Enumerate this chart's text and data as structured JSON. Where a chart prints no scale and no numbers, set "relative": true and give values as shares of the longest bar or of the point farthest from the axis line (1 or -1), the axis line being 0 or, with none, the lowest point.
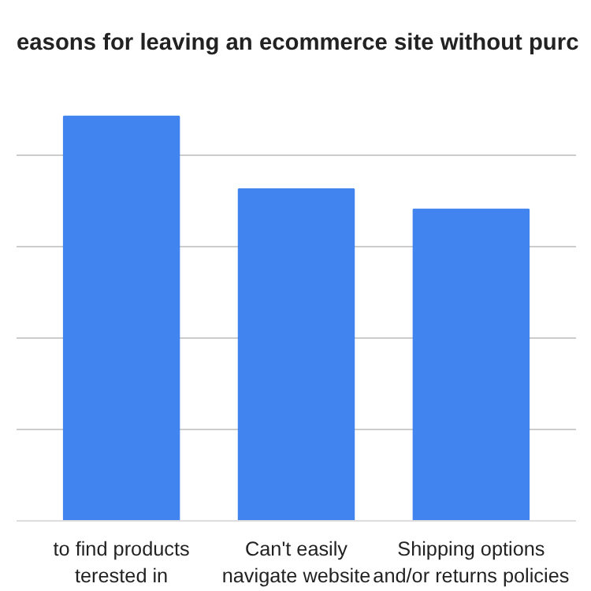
{
  "chart_data": {
    "type": "bar",
    "title": "easons for leaving an ecommerce site without purc",
    "categories": [
      "to find products\nterested in",
      "Can't easily\nnavigate website",
      "Shipping options\nand/or returns policies"
    ],
    "values": [
      1,
      0.82,
      0.77
    ],
    "color": "#4284ef",
    "relative": true,
    "grid": "y"
  }
}
